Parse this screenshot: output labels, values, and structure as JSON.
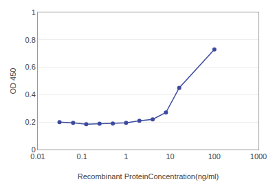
{
  "chart_data": {
    "type": "line",
    "xlabel": "Recombinant ProteinConcentration(ng/ml)",
    "ylabel": "OD 450",
    "x": [
      0.031,
      0.063,
      0.125,
      0.25,
      0.5,
      1.0,
      2.0,
      4.0,
      8.0,
      16.0,
      100.0
    ],
    "values": [
      0.2,
      0.195,
      0.185,
      0.188,
      0.19,
      0.195,
      0.21,
      0.22,
      0.27,
      0.45,
      0.73
    ],
    "color": "#3c4a9e",
    "marker": "circle",
    "log": "x",
    "xlim": [
      0.01,
      1000
    ],
    "xticks": [
      0.01,
      0.1,
      1,
      10,
      100,
      1000
    ],
    "ylim": [
      0,
      1.0
    ],
    "yticks": [
      0,
      0.2,
      0.4,
      0.6,
      0.8,
      1
    ],
    "grid": "y"
  }
}
